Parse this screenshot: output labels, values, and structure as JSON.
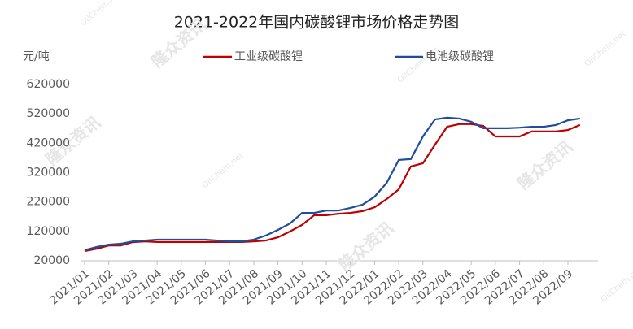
{
  "chart_data": {
    "type": "line",
    "title": "2021-2022年国内碳酸锂市场价格走势图",
    "y_label": "元/吨",
    "watermark": [
      "隆众资讯",
      "OilChem.net"
    ],
    "categories": [
      "2021/01",
      null,
      "2021/02",
      null,
      "2021/03",
      null,
      "2021/04",
      null,
      "2021/05",
      null,
      "2021/06",
      null,
      "2021/07",
      null,
      "2021/08",
      null,
      "2021/09",
      null,
      "2021/10",
      null,
      "2021/11",
      null,
      "2021/12",
      null,
      "2022/01",
      null,
      "2022/02",
      null,
      "2022/03",
      null,
      "2022/04",
      null,
      "2022/05",
      null,
      "2022/06",
      null,
      "2022/07",
      null,
      "2022/08",
      null,
      "2022/09",
      null
    ],
    "series": [
      {
        "name": "工业级碳酸锂",
        "color": "#c00000",
        "values": [
          53000,
          61000,
          72000,
          72000,
          83600,
          86000,
          84000,
          84000,
          84000,
          84000,
          84000,
          84000,
          84000,
          84000,
          86000,
          89000,
          100000,
          120000,
          142000,
          175000,
          175000,
          180000,
          183000,
          189000,
          202000,
          230000,
          263000,
          341000,
          352000,
          415000,
          476000,
          485000,
          485000,
          479000,
          443000,
          443000,
          443000,
          460000,
          460000,
          460000,
          465000,
          482000
        ]
      },
      {
        "name": "电池级碳酸锂",
        "color": "#1f4e9c",
        "values": [
          56000,
          67000,
          75000,
          78000,
          86000,
          89000,
          92000,
          92000,
          92000,
          92000,
          92000,
          89000,
          86000,
          86000,
          92000,
          106000,
          125000,
          147000,
          183000,
          183000,
          191000,
          191000,
          200000,
          211000,
          238000,
          285000,
          363000,
          366000,
          443000,
          501000,
          507000,
          504000,
          493000,
          471000,
          471000,
          471000,
          473000,
          476000,
          476000,
          482000,
          498000,
          504000
        ]
      }
    ],
    "ylim": [
      20000,
      620000
    ],
    "yticks": [
      20000,
      120000,
      220000,
      320000,
      420000,
      520000,
      620000
    ],
    "grid": false
  }
}
